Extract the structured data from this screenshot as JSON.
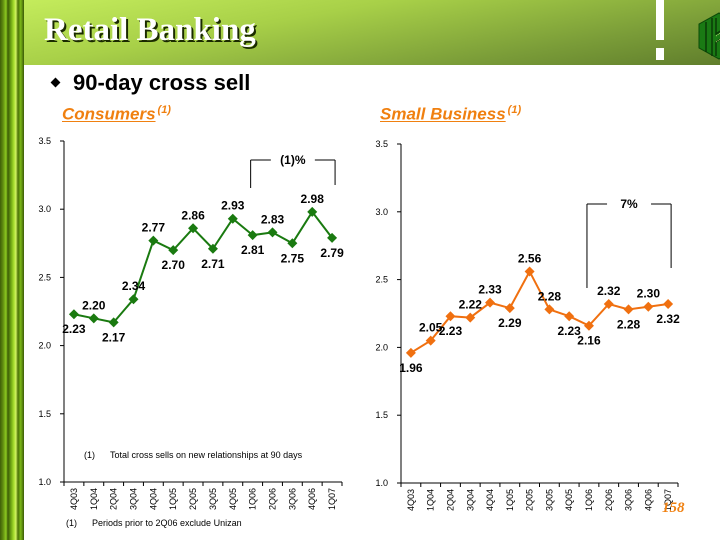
{
  "header": {
    "title": "Retail Banking",
    "logo_icon": "hexagon-h-logo-icon"
  },
  "bullet": {
    "icon": "diamond-bullet-icon",
    "text": "90-day cross sell"
  },
  "sections": {
    "consumers": {
      "title": "Consumers",
      "superscript": "(1)"
    },
    "small_business": {
      "title": "Small Business",
      "superscript": "(1)"
    }
  },
  "footnotes": {
    "chart_note_number": "(1)",
    "chart_note_text": "Total cross sells on new relationships at 90 days",
    "bottom_note_number": "(1)",
    "bottom_note_text": "Periods prior to 2Q06 exclude Unizan"
  },
  "page_number": "158",
  "colors": {
    "consumers_series": "#1a7a10",
    "small_business_series": "#f07010",
    "accent_orange": "#f08010"
  },
  "chart_data": [
    {
      "type": "line",
      "title": "Consumers (1)",
      "xlabel": "",
      "ylabel": "",
      "categories": [
        "4Q03",
        "1Q04",
        "2Q04",
        "3Q04",
        "4Q04",
        "1Q05",
        "2Q05",
        "3Q05",
        "4Q05",
        "1Q06",
        "2Q06",
        "3Q06",
        "4Q06",
        "1Q07"
      ],
      "series": [
        {
          "name": "Consumers",
          "values": [
            2.23,
            2.2,
            2.17,
            2.34,
            2.77,
            2.7,
            2.86,
            2.71,
            2.93,
            2.81,
            2.83,
            2.75,
            2.98,
            2.79
          ]
        }
      ],
      "data_labels": [
        "2.23",
        "2.20",
        "2.17",
        "2.34",
        "2.77",
        "2.70",
        "2.86",
        "2.71",
        "2.93",
        "2.81",
        "2.83",
        "2.75",
        "2.98",
        "2.79"
      ],
      "label_positions": [
        "below",
        "above",
        "below",
        "above",
        "above",
        "below",
        "above",
        "below",
        "above",
        "below",
        "above",
        "below",
        "above",
        "below"
      ],
      "ylim": [
        1.0,
        3.5
      ],
      "yticks": [
        "1.0",
        "1.5",
        "2.0",
        "2.5",
        "3.0",
        "3.5"
      ],
      "grid": false,
      "annotation": {
        "text": "(1)%",
        "from_category": "1Q06",
        "to_category": "1Q07"
      }
    },
    {
      "type": "line",
      "title": "Small Business (1)",
      "xlabel": "",
      "ylabel": "",
      "categories": [
        "4Q03",
        "1Q04",
        "2Q04",
        "3Q04",
        "4Q04",
        "1Q05",
        "2Q05",
        "3Q05",
        "4Q05",
        "1Q06",
        "2Q06",
        "3Q06",
        "4Q06",
        "1Q07"
      ],
      "series": [
        {
          "name": "Small Business",
          "values": [
            1.96,
            2.05,
            2.23,
            2.22,
            2.33,
            2.29,
            2.56,
            2.28,
            2.23,
            2.16,
            2.32,
            2.28,
            2.3,
            2.32
          ]
        }
      ],
      "data_labels": [
        "1.96",
        "2.05",
        "2.23",
        "2.22",
        "2.33",
        "2.29",
        "2.56",
        "2.28",
        "2.23",
        "2.16",
        "2.32",
        "2.28",
        "2.30",
        "2.32"
      ],
      "label_positions": [
        "below",
        "above",
        "below",
        "above",
        "above",
        "below",
        "above",
        "above",
        "below",
        "below",
        "above",
        "below",
        "above",
        "below"
      ],
      "ylim": [
        1.0,
        3.5
      ],
      "yticks": [
        "1.0",
        "1.5",
        "2.0",
        "2.5",
        "3.0",
        "3.5"
      ],
      "grid": false,
      "annotation": {
        "text": "7%",
        "from_category": "1Q06",
        "to_category": "1Q07"
      }
    }
  ]
}
